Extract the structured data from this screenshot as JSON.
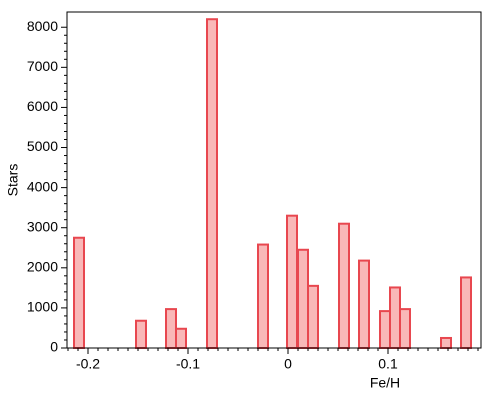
{
  "chart_data": {
    "type": "bar",
    "x_label": "Fe/H",
    "y_label": "Stars",
    "x": [
      -0.209,
      -0.147,
      -0.117,
      -0.107,
      -0.076,
      -0.025,
      0.004,
      0.015,
      0.025,
      0.056,
      0.076,
      0.097,
      0.107,
      0.117,
      0.158,
      0.178
    ],
    "values": [
      2750,
      680,
      970,
      480,
      8200,
      2580,
      3300,
      2450,
      1550,
      3100,
      2180,
      920,
      1510,
      970,
      250,
      1760
    ],
    "color": "#f9b8b8",
    "edge_color": "#e8474f",
    "xlim": [
      -0.221,
      0.193
    ],
    "xticks": [
      -0.2,
      -0.1,
      0,
      0.1
    ],
    "ylim": [
      0,
      8380
    ],
    "yticks": [
      0,
      1000,
      2000,
      3000,
      4000,
      5000,
      6000,
      7000,
      8000
    ]
  }
}
